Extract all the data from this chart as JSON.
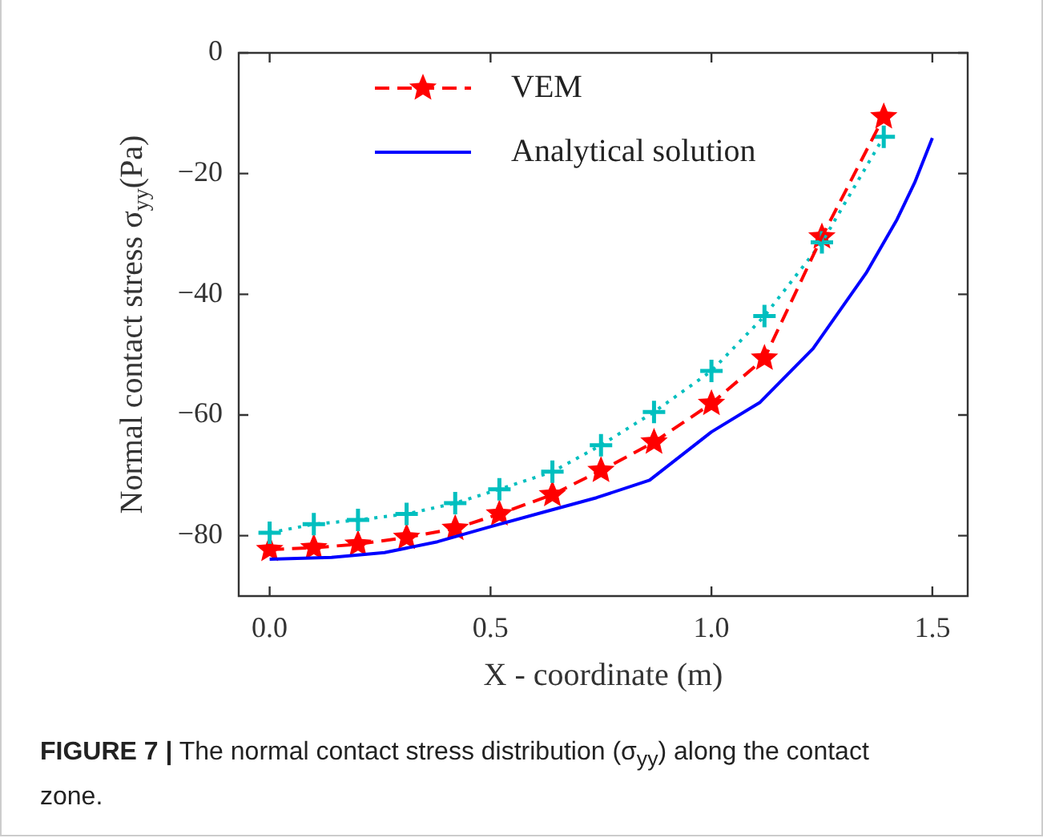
{
  "chart_data": {
    "type": "line",
    "xlabel": "X - coordinate (m)",
    "ylabel": "Normal contact stress σ$_{yy}$(Pa)",
    "xlim": [
      -0.07,
      1.58
    ],
    "ylim": [
      -90,
      0
    ],
    "xticks": [
      {
        "value": 0,
        "label": "0.0"
      },
      {
        "value": 0.5,
        "label": "0.5"
      },
      {
        "value": 1,
        "label": "1.0"
      },
      {
        "value": 1.5,
        "label": "1.5"
      }
    ],
    "yticks": [
      {
        "value": 0,
        "label": "0"
      },
      {
        "value": -20,
        "label": "−20"
      },
      {
        "value": -40,
        "label": "−40"
      },
      {
        "value": -60,
        "label": "−60"
      },
      {
        "value": -80,
        "label": "−80"
      }
    ],
    "grid": false,
    "legend": "top left",
    "series": [
      {
        "name": "VEM",
        "color": "#ff0000",
        "marker": "star",
        "line_style": "dashed",
        "x": [
          0,
          0.1,
          0.2,
          0.31,
          0.42,
          0.52,
          0.64,
          0.75,
          0.87,
          1.0,
          1.12,
          1.25,
          1.39
        ],
        "values": [
          -82.3,
          -82.0,
          -81.4,
          -80.3,
          -78.8,
          -76.4,
          -73.2,
          -69.2,
          -64.5,
          -58.1,
          -50.6,
          -30.5,
          -10.6
        ]
      },
      {
        "color": "#00bfbf",
        "marker": "cross",
        "line_style": "dotted",
        "x": [
          0,
          0.1,
          0.2,
          0.31,
          0.42,
          0.52,
          0.64,
          0.75,
          0.87,
          1.0,
          1.12,
          1.25,
          1.39
        ],
        "values": [
          -79.5,
          -78.1,
          -77.4,
          -76.4,
          -74.6,
          -72.3,
          -69.4,
          -65.0,
          -59.5,
          -52.7,
          -43.6,
          -31.4,
          -13.9
        ]
      },
      {
        "name": "Analytical solution",
        "color": "#0000ff",
        "marker": "none",
        "line_style": "solid",
        "x": [
          0,
          0.14,
          0.26,
          0.38,
          0.5,
          0.62,
          0.74,
          0.86,
          1.0,
          1.11,
          1.23,
          1.35,
          1.42,
          1.46,
          1.5
        ],
        "values": [
          -83.9,
          -83.6,
          -82.8,
          -81.0,
          -78.5,
          -76.1,
          -73.7,
          -70.8,
          -62.8,
          -57.9,
          -49.0,
          -36.5,
          -27.6,
          -21.5,
          -14.1
        ]
      }
    ],
    "annotations": [
      "FIGURE 7 | The normal contact stress distribution (σ$_{yy}$) along the contact zone."
    ]
  }
}
